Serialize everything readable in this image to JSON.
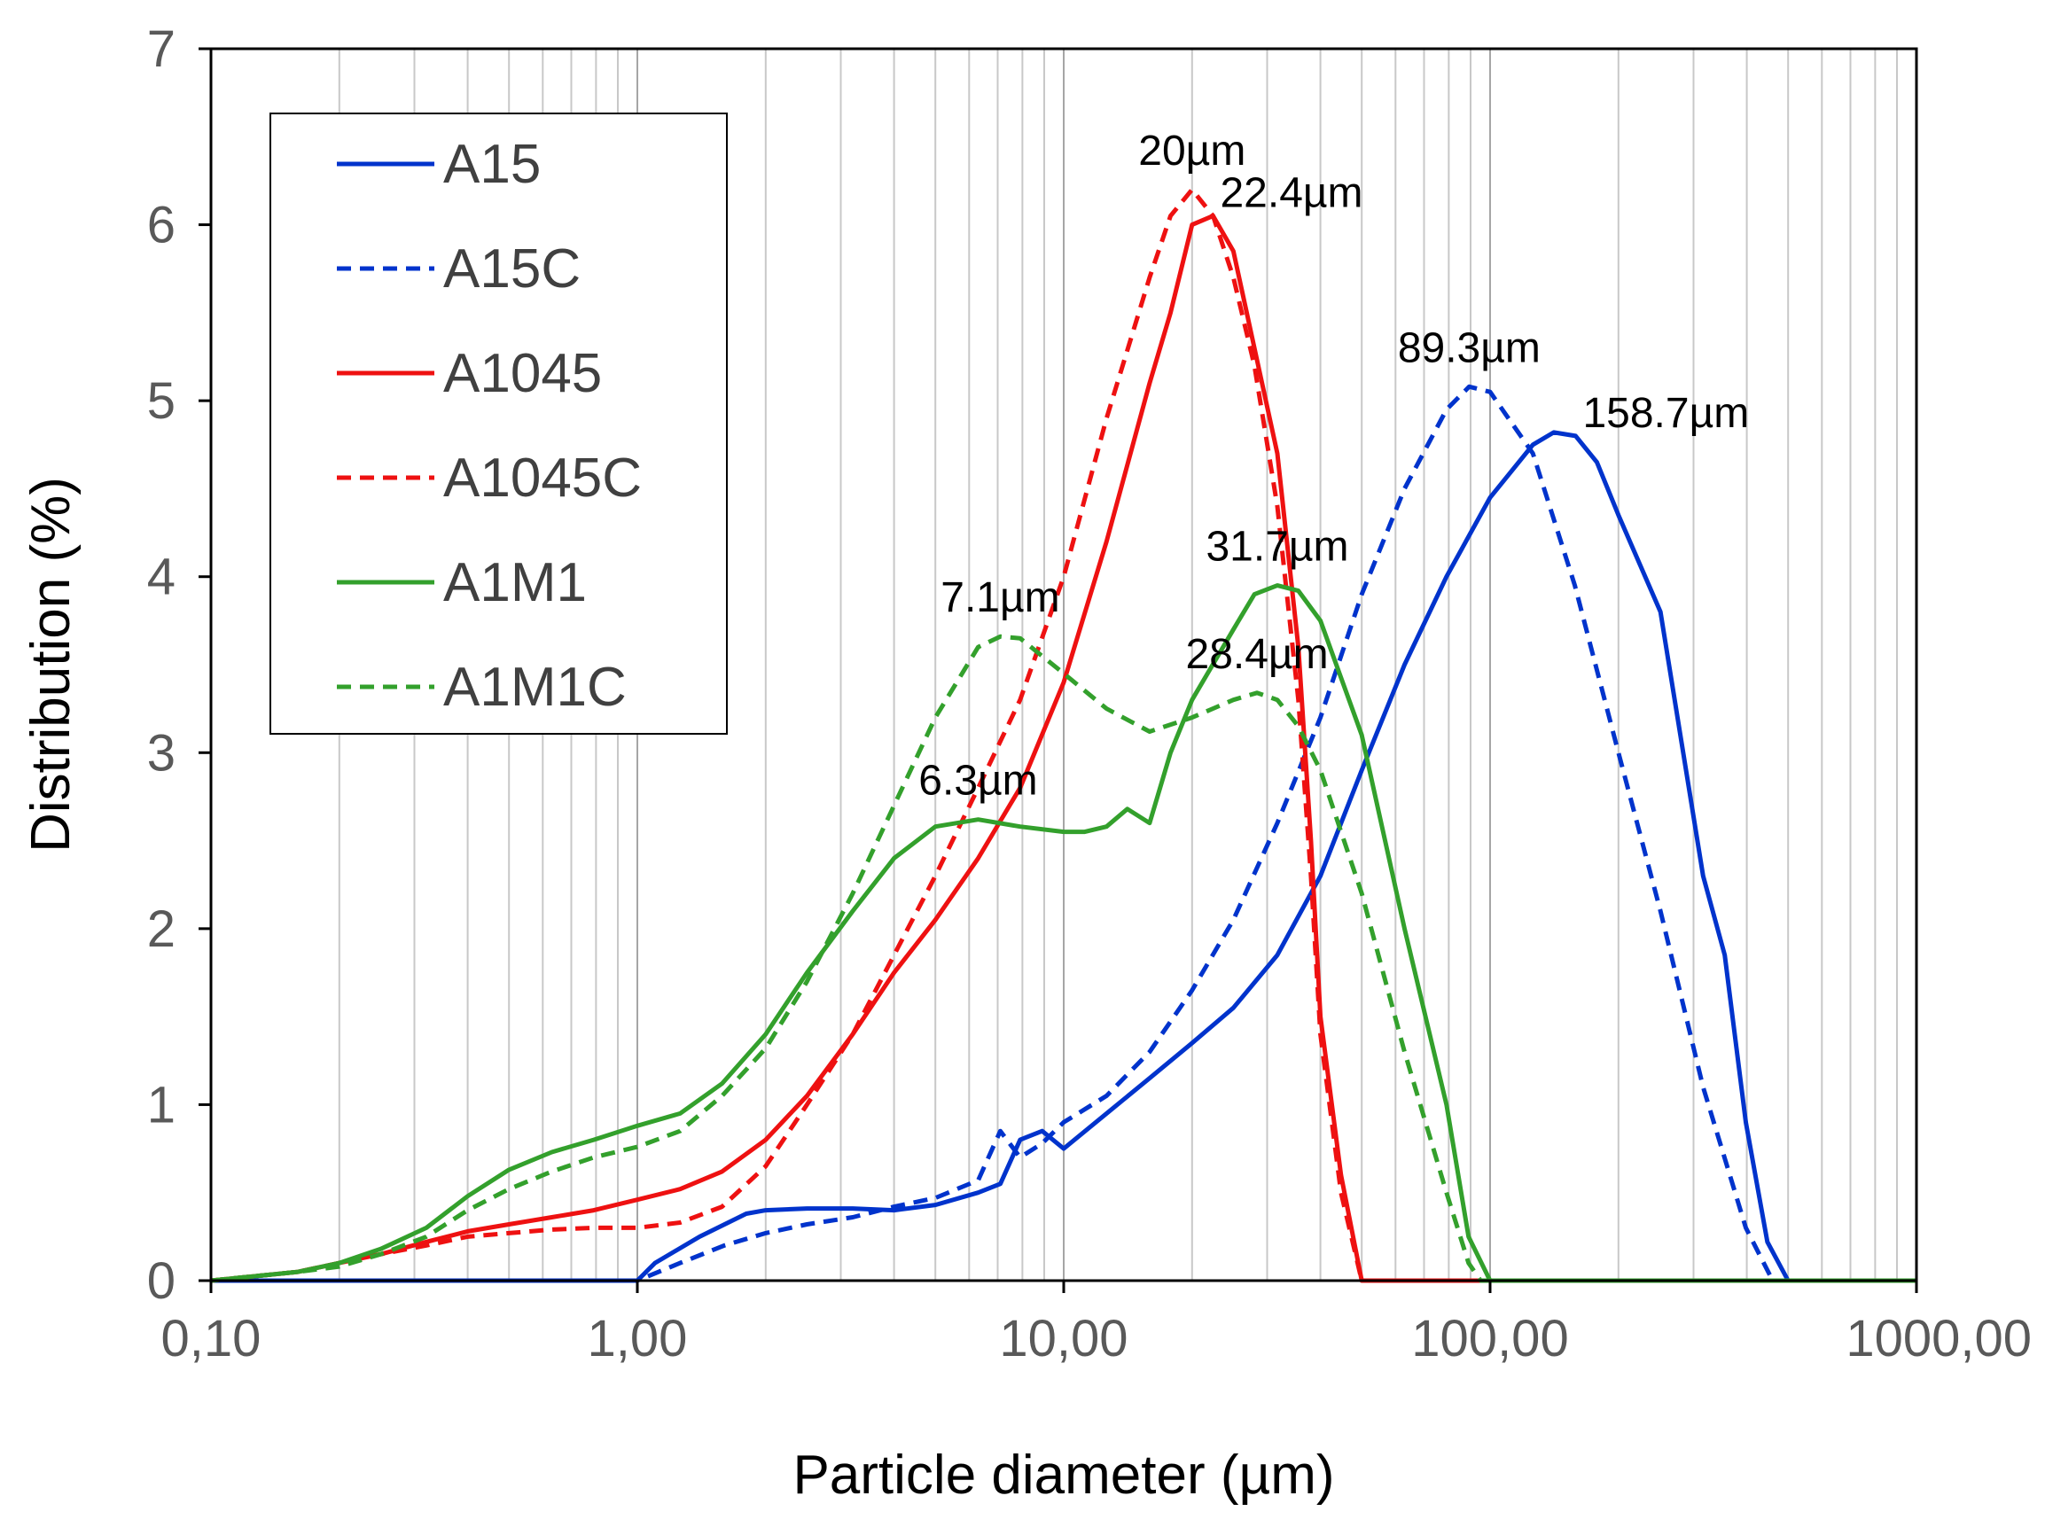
{
  "chart_data": {
    "type": "line",
    "xlabel": "Particle diameter (µm)",
    "ylabel": "Distribution (%)",
    "x_scale": "log",
    "xlim": [
      0.1,
      1000
    ],
    "ylim": [
      0,
      7
    ],
    "grid": "vertical log minor gridlines",
    "legend_position": "top-left",
    "x_ticks": [
      {
        "value": 0.1,
        "label": "0,10"
      },
      {
        "value": 1,
        "label": "1,00"
      },
      {
        "value": 10,
        "label": "10,00"
      },
      {
        "value": 100,
        "label": "100,00"
      },
      {
        "value": 1000,
        "label": "1000,00"
      }
    ],
    "y_ticks": [
      0,
      1,
      2,
      3,
      4,
      5,
      6,
      7
    ],
    "series": [
      {
        "name": "A15",
        "color": "#0033cc",
        "dash": "solid",
        "points": [
          [
            0.1,
            0
          ],
          [
            1.0,
            0
          ],
          [
            1.1,
            0.1
          ],
          [
            1.4,
            0.25
          ],
          [
            1.8,
            0.38
          ],
          [
            2.0,
            0.4
          ],
          [
            2.5,
            0.41
          ],
          [
            3.2,
            0.41
          ],
          [
            4.0,
            0.4
          ],
          [
            5.0,
            0.43
          ],
          [
            6.3,
            0.5
          ],
          [
            7.1,
            0.55
          ],
          [
            7.9,
            0.8
          ],
          [
            8.9,
            0.85
          ],
          [
            10,
            0.75
          ],
          [
            12.6,
            0.95
          ],
          [
            15.9,
            1.15
          ],
          [
            20,
            1.35
          ],
          [
            25,
            1.55
          ],
          [
            31.7,
            1.85
          ],
          [
            40,
            2.3
          ],
          [
            50,
            2.9
          ],
          [
            63,
            3.5
          ],
          [
            79,
            4.0
          ],
          [
            100,
            4.45
          ],
          [
            126,
            4.75
          ],
          [
            141,
            4.82
          ],
          [
            158.7,
            4.8
          ],
          [
            178,
            4.65
          ],
          [
            200,
            4.35
          ],
          [
            251,
            3.8
          ],
          [
            316,
            2.3
          ],
          [
            355,
            1.85
          ],
          [
            398,
            0.9
          ],
          [
            447,
            0.22
          ],
          [
            500,
            0
          ],
          [
            1000,
            0
          ]
        ]
      },
      {
        "name": "A15C",
        "color": "#0033cc",
        "dash": "dashed",
        "points": [
          [
            0.1,
            0
          ],
          [
            1.0,
            0
          ],
          [
            1.26,
            0.1
          ],
          [
            1.6,
            0.2
          ],
          [
            2.0,
            0.27
          ],
          [
            2.5,
            0.32
          ],
          [
            3.2,
            0.36
          ],
          [
            4.0,
            0.42
          ],
          [
            5.0,
            0.47
          ],
          [
            6.3,
            0.57
          ],
          [
            7.1,
            0.85
          ],
          [
            7.9,
            0.7
          ],
          [
            8.9,
            0.78
          ],
          [
            10,
            0.9
          ],
          [
            12.6,
            1.05
          ],
          [
            15.9,
            1.3
          ],
          [
            20,
            1.65
          ],
          [
            25,
            2.05
          ],
          [
            31.7,
            2.6
          ],
          [
            40,
            3.2
          ],
          [
            50,
            3.9
          ],
          [
            63,
            4.5
          ],
          [
            79,
            4.95
          ],
          [
            89.3,
            5.08
          ],
          [
            100,
            5.05
          ],
          [
            126,
            4.7
          ],
          [
            158,
            3.95
          ],
          [
            200,
            3.0
          ],
          [
            251,
            2.1
          ],
          [
            316,
            1.1
          ],
          [
            398,
            0.3
          ],
          [
            460,
            0
          ],
          [
            1000,
            0
          ]
        ]
      },
      {
        "name": "A1045",
        "color": "#ee1111",
        "dash": "solid",
        "points": [
          [
            0.1,
            0
          ],
          [
            0.16,
            0.05
          ],
          [
            0.2,
            0.1
          ],
          [
            0.25,
            0.15
          ],
          [
            0.32,
            0.22
          ],
          [
            0.4,
            0.28
          ],
          [
            0.5,
            0.32
          ],
          [
            0.63,
            0.36
          ],
          [
            0.79,
            0.4
          ],
          [
            1.0,
            0.46
          ],
          [
            1.26,
            0.52
          ],
          [
            1.58,
            0.62
          ],
          [
            2.0,
            0.8
          ],
          [
            2.5,
            1.05
          ],
          [
            3.2,
            1.4
          ],
          [
            4.0,
            1.75
          ],
          [
            5.0,
            2.05
          ],
          [
            6.3,
            2.4
          ],
          [
            7.9,
            2.8
          ],
          [
            10,
            3.4
          ],
          [
            12.6,
            4.2
          ],
          [
            15.9,
            5.1
          ],
          [
            17.8,
            5.5
          ],
          [
            20,
            6.0
          ],
          [
            22.4,
            6.05
          ],
          [
            25,
            5.85
          ],
          [
            28,
            5.3
          ],
          [
            31.7,
            4.7
          ],
          [
            35.5,
            3.6
          ],
          [
            38,
            2.5
          ],
          [
            40,
            1.5
          ],
          [
            44.7,
            0.6
          ],
          [
            50,
            0
          ],
          [
            1000,
            0
          ]
        ]
      },
      {
        "name": "A1045C",
        "color": "#ee1111",
        "dash": "dashed",
        "points": [
          [
            0.1,
            0
          ],
          [
            0.16,
            0.05
          ],
          [
            0.2,
            0.1
          ],
          [
            0.25,
            0.15
          ],
          [
            0.32,
            0.2
          ],
          [
            0.4,
            0.25
          ],
          [
            0.5,
            0.27
          ],
          [
            0.63,
            0.29
          ],
          [
            0.79,
            0.3
          ],
          [
            1.0,
            0.3
          ],
          [
            1.26,
            0.33
          ],
          [
            1.58,
            0.42
          ],
          [
            2.0,
            0.65
          ],
          [
            2.5,
            1.0
          ],
          [
            3.2,
            1.4
          ],
          [
            4.0,
            1.85
          ],
          [
            5.0,
            2.3
          ],
          [
            6.3,
            2.8
          ],
          [
            7.9,
            3.3
          ],
          [
            10,
            4.0
          ],
          [
            12.6,
            4.9
          ],
          [
            15.9,
            5.7
          ],
          [
            17.8,
            6.05
          ],
          [
            20,
            6.2
          ],
          [
            22.4,
            6.05
          ],
          [
            25,
            5.7
          ],
          [
            28,
            5.2
          ],
          [
            31.7,
            4.4
          ],
          [
            35.5,
            3.3
          ],
          [
            38,
            2.3
          ],
          [
            40,
            1.4
          ],
          [
            44.7,
            0.5
          ],
          [
            50,
            0
          ],
          [
            1000,
            0
          ]
        ]
      },
      {
        "name": "A1M1",
        "color": "#33a02c",
        "dash": "solid",
        "points": [
          [
            0.1,
            0
          ],
          [
            0.16,
            0.05
          ],
          [
            0.2,
            0.1
          ],
          [
            0.25,
            0.18
          ],
          [
            0.32,
            0.3
          ],
          [
            0.4,
            0.48
          ],
          [
            0.5,
            0.63
          ],
          [
            0.63,
            0.73
          ],
          [
            0.79,
            0.8
          ],
          [
            1.0,
            0.88
          ],
          [
            1.26,
            0.95
          ],
          [
            1.58,
            1.12
          ],
          [
            2.0,
            1.4
          ],
          [
            2.5,
            1.75
          ],
          [
            3.2,
            2.1
          ],
          [
            4.0,
            2.4
          ],
          [
            5.0,
            2.58
          ],
          [
            6.3,
            2.62
          ],
          [
            7.9,
            2.58
          ],
          [
            10,
            2.55
          ],
          [
            11.2,
            2.55
          ],
          [
            12.6,
            2.58
          ],
          [
            14.1,
            2.68
          ],
          [
            15.9,
            2.6
          ],
          [
            17.8,
            3.0
          ],
          [
            20,
            3.3
          ],
          [
            25,
            3.7
          ],
          [
            28,
            3.9
          ],
          [
            31.7,
            3.95
          ],
          [
            35.5,
            3.92
          ],
          [
            40,
            3.75
          ],
          [
            50,
            3.1
          ],
          [
            63,
            2.0
          ],
          [
            79,
            1.0
          ],
          [
            89,
            0.25
          ],
          [
            100,
            0
          ],
          [
            1000,
            0
          ]
        ]
      },
      {
        "name": "A1M1C",
        "color": "#33a02c",
        "dash": "dashed",
        "points": [
          [
            0.1,
            0
          ],
          [
            0.16,
            0.05
          ],
          [
            0.2,
            0.08
          ],
          [
            0.25,
            0.15
          ],
          [
            0.32,
            0.25
          ],
          [
            0.4,
            0.4
          ],
          [
            0.5,
            0.52
          ],
          [
            0.63,
            0.62
          ],
          [
            0.79,
            0.7
          ],
          [
            1.0,
            0.76
          ],
          [
            1.26,
            0.85
          ],
          [
            1.58,
            1.05
          ],
          [
            2.0,
            1.32
          ],
          [
            2.5,
            1.7
          ],
          [
            3.2,
            2.2
          ],
          [
            4.0,
            2.7
          ],
          [
            5.0,
            3.2
          ],
          [
            6.3,
            3.6
          ],
          [
            7.1,
            3.66
          ],
          [
            7.9,
            3.65
          ],
          [
            10,
            3.45
          ],
          [
            12.6,
            3.25
          ],
          [
            15.9,
            3.12
          ],
          [
            20,
            3.2
          ],
          [
            25,
            3.3
          ],
          [
            28.4,
            3.34
          ],
          [
            31.7,
            3.3
          ],
          [
            35.5,
            3.15
          ],
          [
            40,
            2.9
          ],
          [
            50,
            2.2
          ],
          [
            63,
            1.3
          ],
          [
            79,
            0.5
          ],
          [
            89,
            0.1
          ],
          [
            95,
            0
          ],
          [
            1000,
            0
          ]
        ]
      }
    ],
    "annotations": [
      {
        "text": "20µm",
        "x": 20,
        "y": 6.2,
        "anchor": "above"
      },
      {
        "text": "22.4µm",
        "x": 22.4,
        "y": 6.05,
        "anchor": "right"
      },
      {
        "text": "89.3µm",
        "x": 89.3,
        "y": 5.08,
        "anchor": "above"
      },
      {
        "text": "158.7µm",
        "x": 158.7,
        "y": 4.8,
        "anchor": "right"
      },
      {
        "text": "31.7µm",
        "x": 31.7,
        "y": 3.95,
        "anchor": "above"
      },
      {
        "text": "7.1µm",
        "x": 7.1,
        "y": 3.66,
        "anchor": "above"
      },
      {
        "text": "28.4µm",
        "x": 28.4,
        "y": 3.34,
        "anchor": "above"
      },
      {
        "text": "6.3µm",
        "x": 6.3,
        "y": 2.62,
        "anchor": "above"
      }
    ]
  }
}
